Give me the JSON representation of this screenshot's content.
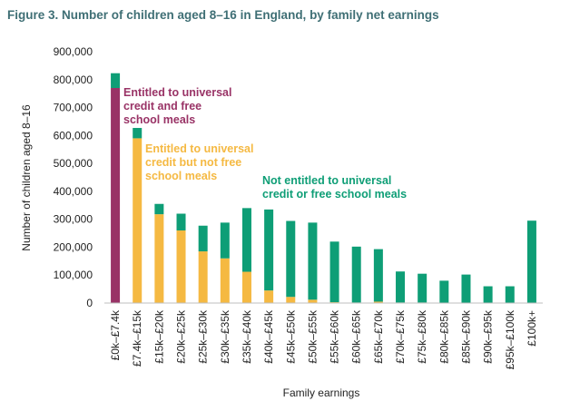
{
  "chart_data": {
    "type": "bar",
    "stacked": true,
    "title": "Figure 3. Number of children aged 8–16 in England, by family net earnings",
    "xlabel": "Family earnings",
    "ylabel": "Number of children aged 8–16",
    "ylim": [
      0,
      900000
    ],
    "yticks": [
      "0",
      "100,000",
      "200,000",
      "300,000",
      "400,000",
      "500,000",
      "600,000",
      "700,000",
      "800,000",
      "900,000"
    ],
    "categories": [
      "£0k–£7.4k",
      "£7.4k–£15k",
      "£15k–£20k",
      "£20k–£25k",
      "£25k–£30k",
      "£30k–£35k",
      "£35k–£40k",
      "£40k–£45k",
      "£45k–£50k",
      "£50k–£55k",
      "£55k–£60k",
      "£60k–£65k",
      "£65k–£70k",
      "£70k–£75k",
      "£75k–£80k",
      "£80k–£85k",
      "£85k–£90k",
      "£90k–£95k",
      "£95k–£100k",
      "£100k+"
    ],
    "series": [
      {
        "name": "Entitled to universal credit and free school meals",
        "color": "#993366",
        "values": [
          770000,
          0,
          0,
          0,
          0,
          0,
          0,
          0,
          0,
          0,
          0,
          0,
          0,
          0,
          0,
          0,
          0,
          0,
          0,
          0
        ]
      },
      {
        "name": "Entitled to universal credit but not free school meals",
        "color": "#f5b942",
        "values": [
          0,
          590000,
          318000,
          260000,
          185000,
          160000,
          112000,
          45000,
          22000,
          12000,
          3000,
          2000,
          5000,
          2000,
          2000,
          1000,
          1000,
          0,
          0,
          0
        ]
      },
      {
        "name": "Not entitled to universal credit or free school meals",
        "color": "#0e9e76",
        "values": [
          53000,
          37000,
          37000,
          60000,
          92000,
          128000,
          228000,
          290000,
          272000,
          276000,
          217000,
          200000,
          188000,
          111000,
          103000,
          79000,
          101000,
          60000,
          60000,
          295000
        ]
      }
    ],
    "annotations": [
      {
        "lines": [
          "Entitled to universal",
          "credit and free",
          "school meals"
        ],
        "color": "#993366"
      },
      {
        "lines": [
          "Entitled to universal",
          "credit but not free",
          "school meals"
        ],
        "color": "#f5b942"
      },
      {
        "lines": [
          "Not entitled to universal",
          "credit or free school meals"
        ],
        "color": "#0e9e76"
      }
    ],
    "grid": false
  }
}
